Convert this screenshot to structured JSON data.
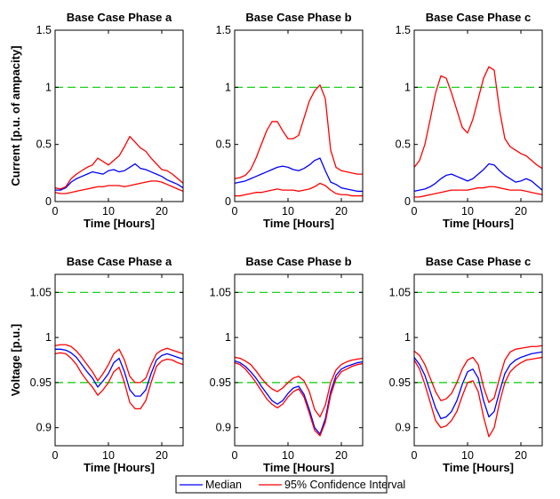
{
  "chart_data": {
    "type": "line",
    "legend": {
      "position": "bottom-center",
      "entries": [
        {
          "label": "Median",
          "color": "#0000ff"
        },
        {
          "label": "95% Confidence Interval",
          "color": "#ff0000"
        }
      ]
    },
    "panels": [
      {
        "title": "Base Case Phase a",
        "xlabel": "Time [Hours]",
        "ylabel": "Current [p.u. of ampacity]",
        "xlim": [
          0,
          24
        ],
        "ylim": [
          0,
          1.5
        ],
        "xticks": [
          0,
          10,
          20
        ],
        "xtick_labels": [
          "0",
          "10",
          "20"
        ],
        "yticks": [
          0,
          0.5,
          1,
          1.5
        ],
        "ytick_labels": [
          "0",
          "0.5",
          "1",
          "1.5"
        ],
        "reference_lines": [
          1.0
        ],
        "x": [
          0,
          1,
          2,
          3,
          4,
          5,
          6,
          7,
          8,
          9,
          10,
          11,
          12,
          13,
          14,
          15,
          16,
          17,
          18,
          19,
          20,
          21,
          22,
          23,
          24
        ],
        "series": [
          {
            "name": "Median",
            "color": "#0000ff",
            "values": [
              0.1,
              0.1,
              0.12,
              0.17,
              0.2,
              0.22,
              0.24,
              0.26,
              0.25,
              0.24,
              0.27,
              0.28,
              0.26,
              0.27,
              0.3,
              0.33,
              0.29,
              0.28,
              0.26,
              0.24,
              0.22,
              0.19,
              0.17,
              0.15,
              0.12
            ]
          },
          {
            "name": "95% Confidence Interval",
            "color": "#ff0000",
            "values": [
              0.12,
              0.11,
              0.13,
              0.2,
              0.24,
              0.27,
              0.3,
              0.32,
              0.38,
              0.35,
              0.32,
              0.36,
              0.4,
              0.48,
              0.57,
              0.52,
              0.47,
              0.44,
              0.38,
              0.33,
              0.28,
              0.27,
              0.24,
              0.2,
              0.16
            ]
          },
          {
            "values": [
              0.08,
              0.07,
              0.07,
              0.08,
              0.09,
              0.1,
              0.11,
              0.12,
              0.13,
              0.13,
              0.14,
              0.14,
              0.14,
              0.13,
              0.14,
              0.15,
              0.16,
              0.17,
              0.18,
              0.18,
              0.17,
              0.15,
              0.13,
              0.11,
              0.09
            ]
          }
        ]
      },
      {
        "title": "Base Case Phase b",
        "xlabel": "Time [Hours]",
        "ylabel": "",
        "xlim": [
          0,
          24
        ],
        "ylim": [
          0,
          1.5
        ],
        "xticks": [
          0,
          10,
          20
        ],
        "xtick_labels": [
          "0",
          "10",
          "20"
        ],
        "yticks": [
          0,
          0.5,
          1,
          1.5
        ],
        "ytick_labels": [
          "0",
          "0.5",
          "1",
          "1.5"
        ],
        "reference_lines": [
          1.0
        ],
        "x": [
          0,
          1,
          2,
          3,
          4,
          5,
          6,
          7,
          8,
          9,
          10,
          11,
          12,
          13,
          14,
          15,
          16,
          17,
          18,
          19,
          20,
          21,
          22,
          23,
          24
        ],
        "series": [
          {
            "name": "Median",
            "color": "#0000ff",
            "values": [
              0.16,
              0.17,
              0.18,
              0.2,
              0.22,
              0.24,
              0.26,
              0.28,
              0.3,
              0.31,
              0.3,
              0.28,
              0.27,
              0.29,
              0.32,
              0.36,
              0.38,
              0.27,
              0.17,
              0.15,
              0.12,
              0.11,
              0.1,
              0.09,
              0.09
            ]
          },
          {
            "name": "95% Confidence Interval",
            "color": "#ff0000",
            "values": [
              0.2,
              0.21,
              0.23,
              0.28,
              0.38,
              0.5,
              0.62,
              0.7,
              0.7,
              0.62,
              0.55,
              0.55,
              0.58,
              0.73,
              0.88,
              0.97,
              1.02,
              0.9,
              0.45,
              0.3,
              0.27,
              0.26,
              0.25,
              0.24,
              0.24
            ]
          },
          {
            "values": [
              0.05,
              0.05,
              0.06,
              0.07,
              0.08,
              0.08,
              0.09,
              0.1,
              0.11,
              0.1,
              0.1,
              0.1,
              0.09,
              0.1,
              0.11,
              0.13,
              0.16,
              0.14,
              0.1,
              0.07,
              0.06,
              0.06,
              0.05,
              0.05,
              0.05
            ]
          }
        ]
      },
      {
        "title": "Base Case Phase c",
        "xlabel": "Time [Hours]",
        "ylabel": "",
        "xlim": [
          0,
          24
        ],
        "ylim": [
          0,
          1.5
        ],
        "xticks": [
          0,
          10,
          20
        ],
        "xtick_labels": [
          "0",
          "10",
          "20"
        ],
        "yticks": [
          0,
          0.5,
          1,
          1.5
        ],
        "ytick_labels": [
          "0",
          "0.5",
          "1",
          "1.5"
        ],
        "reference_lines": [
          1.0
        ],
        "x": [
          0,
          1,
          2,
          3,
          4,
          5,
          6,
          7,
          8,
          9,
          10,
          11,
          12,
          13,
          14,
          15,
          16,
          17,
          18,
          19,
          20,
          21,
          22,
          23,
          24
        ],
        "series": [
          {
            "name": "Median",
            "color": "#0000ff",
            "values": [
              0.09,
              0.1,
              0.11,
              0.13,
              0.16,
              0.2,
              0.23,
              0.24,
              0.22,
              0.2,
              0.18,
              0.2,
              0.24,
              0.28,
              0.33,
              0.32,
              0.27,
              0.23,
              0.2,
              0.17,
              0.18,
              0.2,
              0.18,
              0.14,
              0.1
            ]
          },
          {
            "name": "95% Confidence Interval",
            "color": "#ff0000",
            "values": [
              0.3,
              0.36,
              0.5,
              0.72,
              0.95,
              1.1,
              1.08,
              0.95,
              0.8,
              0.65,
              0.6,
              0.72,
              0.9,
              1.08,
              1.18,
              1.15,
              0.8,
              0.55,
              0.48,
              0.45,
              0.42,
              0.4,
              0.36,
              0.32,
              0.29
            ]
          },
          {
            "values": [
              0.04,
              0.04,
              0.05,
              0.06,
              0.07,
              0.08,
              0.09,
              0.1,
              0.1,
              0.1,
              0.1,
              0.11,
              0.12,
              0.12,
              0.13,
              0.13,
              0.12,
              0.11,
              0.1,
              0.1,
              0.1,
              0.09,
              0.08,
              0.07,
              0.06
            ]
          }
        ]
      },
      {
        "title": "Base Case Phase a",
        "xlabel": "Time [Hours]",
        "ylabel": "Voltage [p.u.]",
        "xlim": [
          0,
          24
        ],
        "ylim": [
          0.88,
          1.07
        ],
        "xticks": [
          0,
          10,
          20
        ],
        "xtick_labels": [
          "0",
          "10",
          "20"
        ],
        "yticks": [
          0.9,
          0.95,
          1,
          1.05
        ],
        "ytick_labels": [
          "0.9",
          "0.95",
          "1",
          "1.05"
        ],
        "reference_lines": [
          1.05,
          0.95
        ],
        "x": [
          0,
          1,
          2,
          3,
          4,
          5,
          6,
          7,
          8,
          9,
          10,
          11,
          12,
          13,
          14,
          15,
          16,
          17,
          18,
          19,
          20,
          21,
          22,
          23,
          24
        ],
        "series": [
          {
            "name": "Median",
            "color": "#0000ff",
            "values": [
              0.987,
              0.987,
              0.986,
              0.983,
              0.978,
              0.97,
              0.962,
              0.955,
              0.945,
              0.952,
              0.96,
              0.972,
              0.977,
              0.962,
              0.942,
              0.935,
              0.935,
              0.942,
              0.96,
              0.975,
              0.98,
              0.982,
              0.98,
              0.978,
              0.976
            ]
          },
          {
            "name": "95% Confidence Interval",
            "color": "#ff0000",
            "values": [
              0.991,
              0.992,
              0.992,
              0.99,
              0.985,
              0.978,
              0.97,
              0.962,
              0.952,
              0.96,
              0.97,
              0.982,
              0.987,
              0.975,
              0.957,
              0.95,
              0.95,
              0.955,
              0.97,
              0.982,
              0.986,
              0.988,
              0.986,
              0.984,
              0.982
            ]
          },
          {
            "values": [
              0.982,
              0.983,
              0.982,
              0.977,
              0.97,
              0.96,
              0.952,
              0.945,
              0.936,
              0.942,
              0.95,
              0.962,
              0.967,
              0.95,
              0.928,
              0.921,
              0.921,
              0.93,
              0.95,
              0.968,
              0.974,
              0.976,
              0.975,
              0.972,
              0.97
            ]
          }
        ]
      },
      {
        "title": "Base Case Phase b",
        "xlabel": "Time [Hours]",
        "ylabel": "",
        "xlim": [
          0,
          24
        ],
        "ylim": [
          0.88,
          1.07
        ],
        "xticks": [
          0,
          10,
          20
        ],
        "xtick_labels": [
          "0",
          "10",
          "20"
        ],
        "yticks": [
          0.9,
          0.95,
          1,
          1.05
        ],
        "ytick_labels": [
          "0.9",
          "0.95",
          "1",
          "1.05"
        ],
        "reference_lines": [
          1.05,
          0.95
        ],
        "x": [
          0,
          1,
          2,
          3,
          4,
          5,
          6,
          7,
          8,
          9,
          10,
          11,
          12,
          13,
          14,
          15,
          16,
          17,
          18,
          19,
          20,
          21,
          22,
          23,
          24
        ],
        "series": [
          {
            "name": "Median",
            "color": "#0000ff",
            "values": [
              0.974,
              0.972,
              0.968,
              0.962,
              0.955,
              0.946,
              0.938,
              0.93,
              0.926,
              0.93,
              0.938,
              0.944,
              0.946,
              0.937,
              0.92,
              0.9,
              0.893,
              0.91,
              0.94,
              0.958,
              0.965,
              0.968,
              0.97,
              0.972,
              0.973
            ]
          },
          {
            "name": "95% Confidence Interval",
            "color": "#ff0000",
            "values": [
              0.978,
              0.977,
              0.974,
              0.97,
              0.963,
              0.955,
              0.948,
              0.943,
              0.94,
              0.944,
              0.95,
              0.955,
              0.957,
              0.952,
              0.94,
              0.92,
              0.912,
              0.925,
              0.95,
              0.964,
              0.97,
              0.973,
              0.975,
              0.976,
              0.977
            ]
          },
          {
            "values": [
              0.972,
              0.97,
              0.965,
              0.958,
              0.95,
              0.941,
              0.932,
              0.926,
              0.922,
              0.926,
              0.934,
              0.94,
              0.943,
              0.934,
              0.916,
              0.897,
              0.891,
              0.906,
              0.936,
              0.954,
              0.962,
              0.965,
              0.968,
              0.97,
              0.971
            ]
          }
        ]
      },
      {
        "title": "Base Case Phase c",
        "xlabel": "Time [Hours]",
        "ylabel": "",
        "xlim": [
          0,
          24
        ],
        "ylim": [
          0.88,
          1.07
        ],
        "xticks": [
          0,
          10,
          20
        ],
        "xtick_labels": [
          "0",
          "10",
          "20"
        ],
        "yticks": [
          0.9,
          0.95,
          1,
          1.05
        ],
        "ytick_labels": [
          "0.9",
          "0.95",
          "1",
          "1.05"
        ],
        "reference_lines": [
          1.05,
          0.95
        ],
        "x": [
          0,
          1,
          2,
          3,
          4,
          5,
          6,
          7,
          8,
          9,
          10,
          11,
          12,
          13,
          14,
          15,
          16,
          17,
          18,
          19,
          20,
          21,
          22,
          23,
          24
        ],
        "series": [
          {
            "name": "Median",
            "color": "#0000ff",
            "values": [
              0.978,
              0.97,
              0.958,
              0.94,
              0.922,
              0.91,
              0.912,
              0.918,
              0.93,
              0.948,
              0.962,
              0.965,
              0.955,
              0.93,
              0.912,
              0.918,
              0.94,
              0.96,
              0.97,
              0.975,
              0.978,
              0.98,
              0.982,
              0.983,
              0.984
            ]
          },
          {
            "name": "95% Confidence Interval",
            "color": "#ff0000",
            "values": [
              0.985,
              0.98,
              0.97,
              0.955,
              0.94,
              0.93,
              0.932,
              0.938,
              0.95,
              0.965,
              0.975,
              0.978,
              0.97,
              0.945,
              0.928,
              0.933,
              0.955,
              0.975,
              0.984,
              0.987,
              0.988,
              0.989,
              0.99,
              0.99,
              0.991
            ]
          },
          {
            "values": [
              0.975,
              0.965,
              0.948,
              0.928,
              0.908,
              0.9,
              0.902,
              0.908,
              0.918,
              0.935,
              0.95,
              0.952,
              0.94,
              0.912,
              0.89,
              0.9,
              0.928,
              0.95,
              0.962,
              0.968,
              0.972,
              0.975,
              0.976,
              0.977,
              0.978
            ]
          }
        ]
      }
    ]
  }
}
